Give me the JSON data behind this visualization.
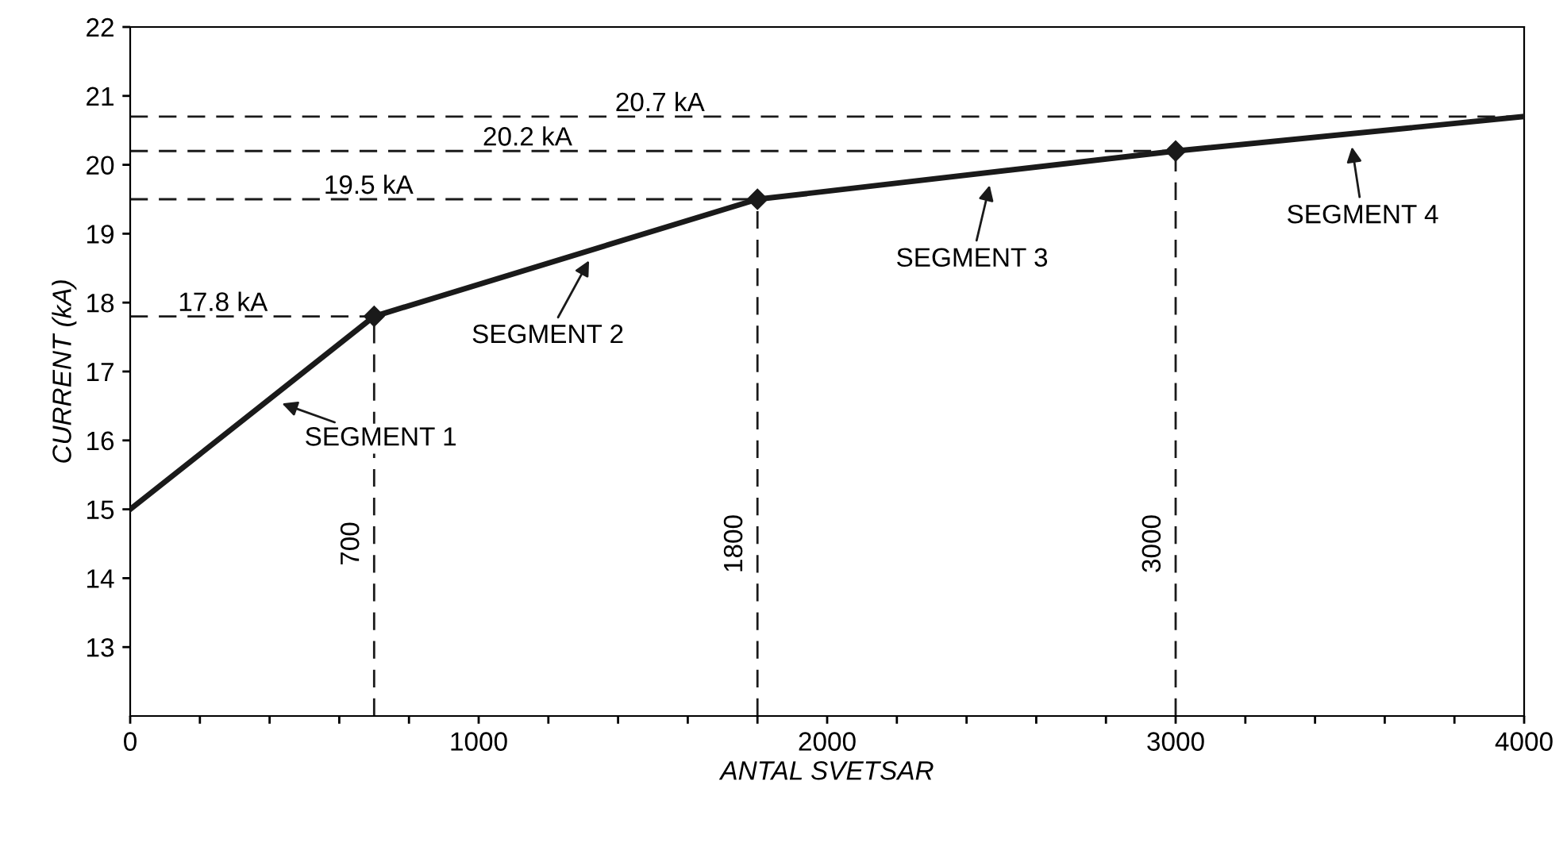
{
  "chart_data": {
    "type": "line",
    "xlabel": "ANTAL SVETSAR",
    "ylabel": "CURRENT (kA)",
    "x": [
      0,
      700,
      1800,
      3000,
      4000
    ],
    "series": [
      {
        "color": "#1a1a1a",
        "values": [
          15,
          17.8,
          19.5,
          20.2,
          20.7
        ]
      }
    ],
    "marker": "diamond",
    "line_style": "solid",
    "grid": false,
    "legend": false,
    "xlim": [
      0,
      4000
    ],
    "xticks": [
      0,
      {
        "value": 200,
        "label": null
      },
      {
        "value": 400,
        "label": null
      },
      {
        "value": 600,
        "label": null
      },
      {
        "value": 800,
        "label": null
      },
      1000,
      {
        "value": 1200,
        "label": null
      },
      {
        "value": 1400,
        "label": null
      },
      {
        "value": 1600,
        "label": null
      },
      {
        "value": 1800,
        "label": null
      },
      2000,
      {
        "value": 2200,
        "label": null
      },
      {
        "value": 2400,
        "label": null
      },
      {
        "value": 2600,
        "label": null
      },
      {
        "value": 2800,
        "label": null
      },
      3000,
      {
        "value": 3200,
        "label": null
      },
      {
        "value": 3400,
        "label": null
      },
      {
        "value": 3600,
        "label": null
      },
      {
        "value": 3800,
        "label": null
      },
      4000
    ],
    "ylim": [
      12,
      22
    ],
    "yticks": [
      13,
      14,
      15,
      16,
      17,
      18,
      19,
      20,
      21,
      22
    ],
    "ref_lines": [
      {
        "axis": "y",
        "value": 17.8,
        "label": "17.8 kA",
        "line_style": "dashed"
      },
      {
        "axis": "y",
        "value": 19.5,
        "label": "19.5 kA",
        "line_style": "dashed"
      },
      {
        "axis": "y",
        "value": 20.2,
        "label": "20.2 kA",
        "line_style": "dashed"
      },
      {
        "axis": "y",
        "value": 20.7,
        "label": "20.7 kA",
        "line_style": "dashed"
      },
      {
        "axis": "x",
        "value": 700,
        "label": "700",
        "line_style": "dashed"
      },
      {
        "axis": "x",
        "value": 1800,
        "label": "1800",
        "line_style": "dashed"
      },
      {
        "axis": "x",
        "value": 3000,
        "label": "3000",
        "line_style": "dashed"
      }
    ],
    "annotations": [
      {
        "text": "SEGMENT 1",
        "x": 400,
        "y": 16.6
      },
      {
        "text": "SEGMENT 2",
        "x": 1335,
        "y": 18.78
      },
      {
        "text": "SEGMENT 3",
        "x": 2475,
        "y": 19.89
      },
      {
        "text": "SEGMENT 4",
        "x": 3500,
        "y": 20.45
      }
    ]
  }
}
